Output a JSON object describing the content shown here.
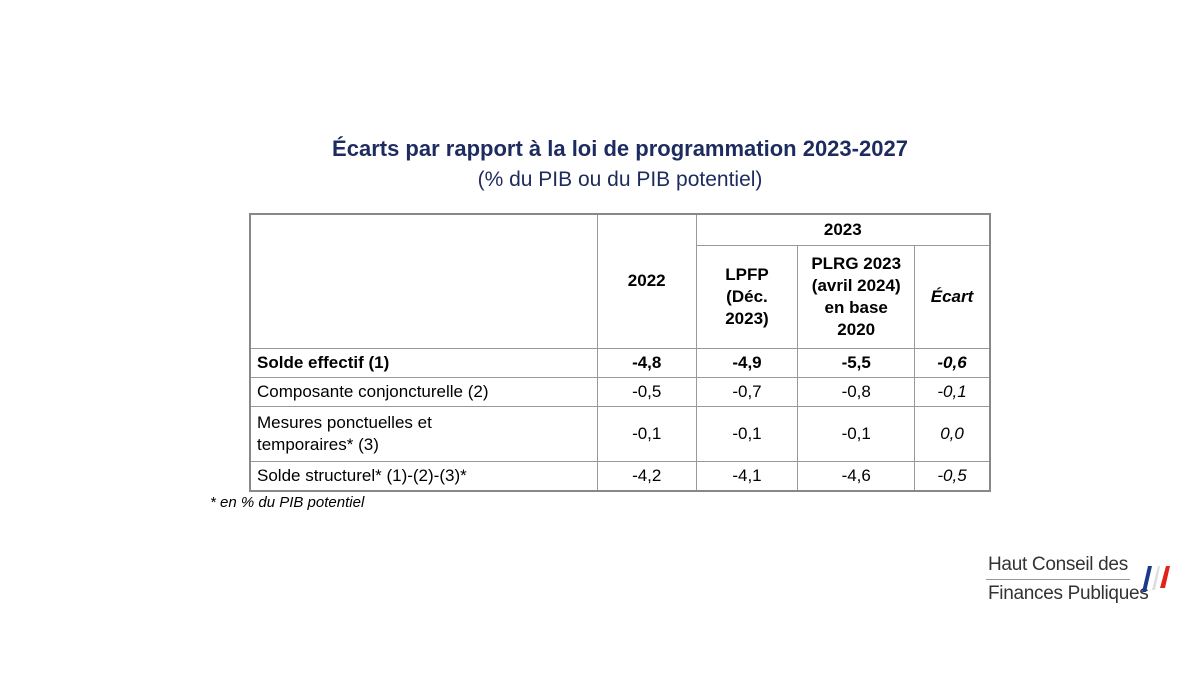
{
  "title": "Écarts par rapport à la loi de programmation 2023-2027",
  "subtitle": "(% du PIB ou du PIB potentiel)",
  "table": {
    "header": {
      "year_2022": "2022",
      "year_2023": "2023",
      "columns": [
        "LPFP (Déc. 2023)",
        "PLRG 2023 (avril 2024) en base 2020",
        "Écart"
      ]
    },
    "rows": [
      [
        "Solde effectif (1)",
        "-4,8",
        "-4,9",
        "-5,5",
        "-0,6"
      ],
      [
        "Composante conjoncturelle (2)",
        "-0,5",
        "-0,7",
        "-0,8",
        "-0,1"
      ],
      [
        "Mesures ponctuelles et temporaires* (3)",
        "-0,1",
        "-0,1",
        "-0,1",
        "0,0"
      ],
      [
        "Solde structurel* (1)-(2)-(3)*",
        "-4,2",
        "-4,1",
        "-4,6",
        "-0,5"
      ]
    ]
  },
  "footnote": "* en % du PIB potentiel",
  "logo": {
    "line1": "Haut Conseil des",
    "line2": "Finances Publiques"
  }
}
